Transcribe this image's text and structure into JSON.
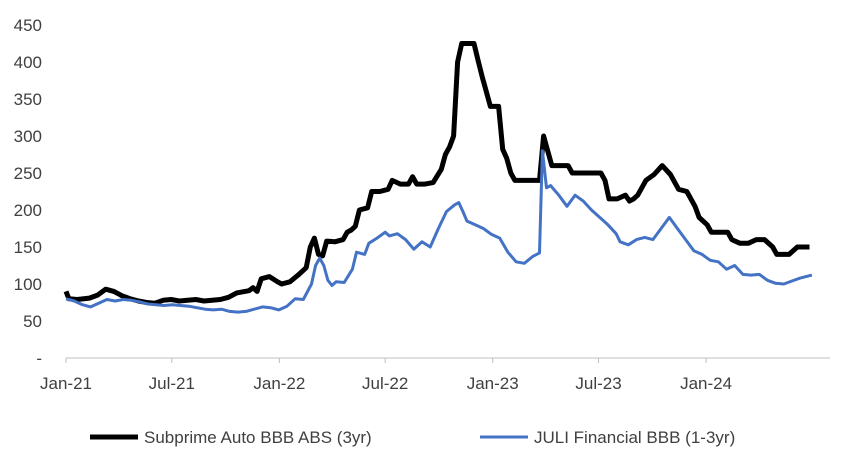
{
  "chart_data": {
    "type": "line",
    "title": "",
    "xlabel": "",
    "ylabel": "",
    "ylim": [
      0,
      450
    ],
    "y_ticks": [
      {
        "value": 0,
        "label": "-"
      },
      {
        "value": 50,
        "label": "50"
      },
      {
        "value": 100,
        "label": "100"
      },
      {
        "value": 150,
        "label": "150"
      },
      {
        "value": 200,
        "label": "200"
      },
      {
        "value": 250,
        "label": "250"
      },
      {
        "value": 300,
        "label": "300"
      },
      {
        "value": 350,
        "label": "350"
      },
      {
        "value": 400,
        "label": "400"
      },
      {
        "value": 450,
        "label": "450"
      }
    ],
    "x_range": [
      "2021-01-01",
      "2024-07-31"
    ],
    "x_ticks": [
      {
        "date": "2021-01-01",
        "label": "Jan-21"
      },
      {
        "date": "2021-07-01",
        "label": "Jul-21"
      },
      {
        "date": "2022-01-01",
        "label": "Jan-22"
      },
      {
        "date": "2022-07-01",
        "label": "Jul-22"
      },
      {
        "date": "2023-01-01",
        "label": "Jan-23"
      },
      {
        "date": "2023-07-01",
        "label": "Jul-23"
      },
      {
        "date": "2024-01-01",
        "label": "Jan-24"
      }
    ],
    "grid": false,
    "legend_position": "bottom",
    "series": [
      {
        "name": "Subprime Auto BBB ABS (3yr)",
        "color": "#000000",
        "points": [
          [
            "2021-01-01",
            90
          ],
          [
            "2021-01-06",
            80
          ],
          [
            "2021-01-20",
            79
          ],
          [
            "2021-02-10",
            81
          ],
          [
            "2021-02-24",
            85
          ],
          [
            "2021-03-10",
            93
          ],
          [
            "2021-03-24",
            90
          ],
          [
            "2021-04-07",
            84
          ],
          [
            "2021-04-21",
            80
          ],
          [
            "2021-05-05",
            77
          ],
          [
            "2021-05-19",
            75
          ],
          [
            "2021-06-02",
            74
          ],
          [
            "2021-06-16",
            78
          ],
          [
            "2021-06-30",
            79
          ],
          [
            "2021-07-14",
            77
          ],
          [
            "2021-07-28",
            78
          ],
          [
            "2021-08-11",
            79
          ],
          [
            "2021-08-25",
            77
          ],
          [
            "2021-09-08",
            78
          ],
          [
            "2021-09-22",
            79
          ],
          [
            "2021-10-06",
            82
          ],
          [
            "2021-10-20",
            88
          ],
          [
            "2021-11-03",
            90
          ],
          [
            "2021-11-10",
            91
          ],
          [
            "2021-11-17",
            95
          ],
          [
            "2021-11-24",
            90
          ],
          [
            "2021-12-01",
            107
          ],
          [
            "2021-12-15",
            110
          ],
          [
            "2021-12-29",
            103
          ],
          [
            "2022-01-05",
            100
          ],
          [
            "2022-01-19",
            103
          ],
          [
            "2022-02-02",
            112
          ],
          [
            "2022-02-16",
            122
          ],
          [
            "2022-02-23",
            150
          ],
          [
            "2022-03-02",
            162
          ],
          [
            "2022-03-09",
            140
          ],
          [
            "2022-03-16",
            138
          ],
          [
            "2022-03-23",
            158
          ],
          [
            "2022-04-06",
            157
          ],
          [
            "2022-04-20",
            160
          ],
          [
            "2022-04-27",
            170
          ],
          [
            "2022-05-04",
            173
          ],
          [
            "2022-05-11",
            178
          ],
          [
            "2022-05-18",
            200
          ],
          [
            "2022-06-01",
            203
          ],
          [
            "2022-06-08",
            225
          ],
          [
            "2022-06-22",
            225
          ],
          [
            "2022-07-06",
            228
          ],
          [
            "2022-07-13",
            240
          ],
          [
            "2022-07-27",
            235
          ],
          [
            "2022-08-10",
            235
          ],
          [
            "2022-08-17",
            245
          ],
          [
            "2022-08-24",
            235
          ],
          [
            "2022-09-07",
            235
          ],
          [
            "2022-09-21",
            237
          ],
          [
            "2022-10-05",
            255
          ],
          [
            "2022-10-12",
            275
          ],
          [
            "2022-10-19",
            285
          ],
          [
            "2022-10-26",
            300
          ],
          [
            "2022-11-02",
            400
          ],
          [
            "2022-11-09",
            425
          ],
          [
            "2022-11-16",
            425
          ],
          [
            "2022-11-30",
            425
          ],
          [
            "2022-12-07",
            402
          ],
          [
            "2022-12-14",
            380
          ],
          [
            "2022-12-21",
            360
          ],
          [
            "2022-12-28",
            340
          ],
          [
            "2023-01-11",
            340
          ],
          [
            "2023-01-18",
            282
          ],
          [
            "2023-01-25",
            270
          ],
          [
            "2023-02-01",
            250
          ],
          [
            "2023-02-08",
            240
          ],
          [
            "2023-03-08",
            240
          ],
          [
            "2023-03-22",
            240
          ],
          [
            "2023-03-29",
            300
          ],
          [
            "2023-04-05",
            280
          ],
          [
            "2023-04-12",
            260
          ],
          [
            "2023-05-10",
            260
          ],
          [
            "2023-05-17",
            250
          ],
          [
            "2023-06-21",
            250
          ],
          [
            "2023-07-05",
            250
          ],
          [
            "2023-07-12",
            240
          ],
          [
            "2023-07-19",
            215
          ],
          [
            "2023-08-02",
            215
          ],
          [
            "2023-08-16",
            220
          ],
          [
            "2023-08-23",
            212
          ],
          [
            "2023-08-30",
            215
          ],
          [
            "2023-09-06",
            220
          ],
          [
            "2023-09-20",
            240
          ],
          [
            "2023-10-04",
            248
          ],
          [
            "2023-10-18",
            260
          ],
          [
            "2023-11-01",
            248
          ],
          [
            "2023-11-15",
            228
          ],
          [
            "2023-11-29",
            225
          ],
          [
            "2023-12-13",
            205
          ],
          [
            "2023-12-20",
            190
          ],
          [
            "2024-01-03",
            180
          ],
          [
            "2024-01-10",
            170
          ],
          [
            "2024-02-07",
            170
          ],
          [
            "2024-02-14",
            160
          ],
          [
            "2024-02-28",
            155
          ],
          [
            "2024-03-13",
            155
          ],
          [
            "2024-03-27",
            160
          ],
          [
            "2024-04-10",
            160
          ],
          [
            "2024-04-24",
            150
          ],
          [
            "2024-05-01",
            140
          ],
          [
            "2024-05-22",
            140
          ],
          [
            "2024-06-05",
            150
          ],
          [
            "2024-06-26",
            150
          ]
        ]
      },
      {
        "name": "JULI Financial BBB (1-3yr)",
        "color": "#4472c4",
        "points": [
          [
            "2021-01-01",
            80
          ],
          [
            "2021-01-15",
            77
          ],
          [
            "2021-01-29",
            72
          ],
          [
            "2021-02-12",
            69
          ],
          [
            "2021-02-26",
            74
          ],
          [
            "2021-03-12",
            79
          ],
          [
            "2021-03-26",
            77
          ],
          [
            "2021-04-09",
            79
          ],
          [
            "2021-04-23",
            78
          ],
          [
            "2021-05-07",
            76
          ],
          [
            "2021-05-21",
            73
          ],
          [
            "2021-06-04",
            72
          ],
          [
            "2021-06-18",
            71
          ],
          [
            "2021-07-02",
            72
          ],
          [
            "2021-07-16",
            71
          ],
          [
            "2021-07-30",
            70
          ],
          [
            "2021-08-13",
            68
          ],
          [
            "2021-08-27",
            66
          ],
          [
            "2021-09-10",
            65
          ],
          [
            "2021-09-24",
            66
          ],
          [
            "2021-10-08",
            63
          ],
          [
            "2021-10-22",
            62
          ],
          [
            "2021-11-05",
            63
          ],
          [
            "2021-11-19",
            66
          ],
          [
            "2021-12-03",
            69
          ],
          [
            "2021-12-17",
            68
          ],
          [
            "2021-12-31",
            65
          ],
          [
            "2022-01-14",
            70
          ],
          [
            "2022-01-28",
            80
          ],
          [
            "2022-02-11",
            79
          ],
          [
            "2022-02-25",
            100
          ],
          [
            "2022-03-04",
            125
          ],
          [
            "2022-03-11",
            135
          ],
          [
            "2022-03-18",
            125
          ],
          [
            "2022-03-25",
            105
          ],
          [
            "2022-04-01",
            98
          ],
          [
            "2022-04-08",
            103
          ],
          [
            "2022-04-22",
            102
          ],
          [
            "2022-05-06",
            120
          ],
          [
            "2022-05-13",
            143
          ],
          [
            "2022-05-27",
            140
          ],
          [
            "2022-06-03",
            155
          ],
          [
            "2022-06-17",
            162
          ],
          [
            "2022-07-01",
            170
          ],
          [
            "2022-07-08",
            165
          ],
          [
            "2022-07-22",
            168
          ],
          [
            "2022-08-05",
            160
          ],
          [
            "2022-08-19",
            147
          ],
          [
            "2022-09-02",
            157
          ],
          [
            "2022-09-16",
            150
          ],
          [
            "2022-09-30",
            175
          ],
          [
            "2022-10-14",
            198
          ],
          [
            "2022-10-28",
            207
          ],
          [
            "2022-11-04",
            210
          ],
          [
            "2022-11-11",
            198
          ],
          [
            "2022-11-18",
            185
          ],
          [
            "2022-12-02",
            180
          ],
          [
            "2022-12-16",
            175
          ],
          [
            "2022-12-30",
            167
          ],
          [
            "2023-01-13",
            162
          ],
          [
            "2023-01-27",
            143
          ],
          [
            "2023-02-10",
            130
          ],
          [
            "2023-02-24",
            128
          ],
          [
            "2023-03-10",
            137
          ],
          [
            "2023-03-22",
            142
          ],
          [
            "2023-03-27",
            280
          ],
          [
            "2023-04-03",
            230
          ],
          [
            "2023-04-10",
            233
          ],
          [
            "2023-04-24",
            220
          ],
          [
            "2023-05-08",
            205
          ],
          [
            "2023-05-22",
            220
          ],
          [
            "2023-06-05",
            212
          ],
          [
            "2023-06-19",
            200
          ],
          [
            "2023-07-03",
            190
          ],
          [
            "2023-07-17",
            180
          ],
          [
            "2023-07-31",
            168
          ],
          [
            "2023-08-07",
            157
          ],
          [
            "2023-08-21",
            153
          ],
          [
            "2023-09-04",
            160
          ],
          [
            "2023-09-18",
            163
          ],
          [
            "2023-10-02",
            160
          ],
          [
            "2023-10-16",
            175
          ],
          [
            "2023-10-30",
            190
          ],
          [
            "2023-11-13",
            175
          ],
          [
            "2023-11-27",
            160
          ],
          [
            "2023-12-11",
            145
          ],
          [
            "2023-12-25",
            140
          ],
          [
            "2024-01-08",
            132
          ],
          [
            "2024-01-22",
            130
          ],
          [
            "2024-02-05",
            120
          ],
          [
            "2024-02-19",
            125
          ],
          [
            "2024-03-04",
            113
          ],
          [
            "2024-03-18",
            112
          ],
          [
            "2024-04-01",
            113
          ],
          [
            "2024-04-15",
            105
          ],
          [
            "2024-04-29",
            101
          ],
          [
            "2024-05-13",
            100
          ],
          [
            "2024-05-27",
            104
          ],
          [
            "2024-06-10",
            108
          ],
          [
            "2024-06-30",
            112
          ]
        ]
      }
    ]
  }
}
